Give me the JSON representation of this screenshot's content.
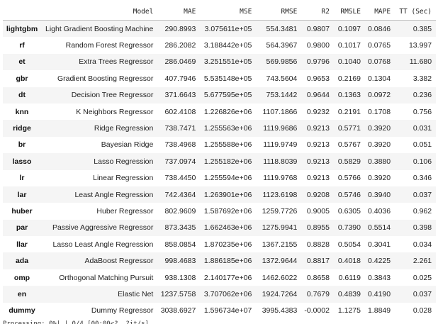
{
  "table": {
    "columns": [
      "",
      "Model",
      "MAE",
      "MSE",
      "RMSE",
      "R2",
      "RMSLE",
      "MAPE",
      "TT (Sec)"
    ],
    "rows": [
      [
        "lightgbm",
        "Light Gradient Boosting Machine",
        "290.8993",
        "3.075611e+05",
        "554.3481",
        "0.9807",
        "0.1097",
        "0.0846",
        "0.385"
      ],
      [
        "rf",
        "Random Forest Regressor",
        "286.2082",
        "3.188442e+05",
        "564.3967",
        "0.9800",
        "0.1017",
        "0.0765",
        "13.997"
      ],
      [
        "et",
        "Extra Trees Regressor",
        "286.0469",
        "3.251551e+05",
        "569.9856",
        "0.9796",
        "0.1040",
        "0.0768",
        "11.680"
      ],
      [
        "gbr",
        "Gradient Boosting Regressor",
        "407.7946",
        "5.535148e+05",
        "743.5604",
        "0.9653",
        "0.2169",
        "0.1304",
        "3.382"
      ],
      [
        "dt",
        "Decision Tree Regressor",
        "371.6643",
        "5.677595e+05",
        "753.1442",
        "0.9644",
        "0.1363",
        "0.0972",
        "0.236"
      ],
      [
        "knn",
        "K Neighbors Regressor",
        "602.4108",
        "1.226826e+06",
        "1107.1866",
        "0.9232",
        "0.2191",
        "0.1708",
        "0.756"
      ],
      [
        "ridge",
        "Ridge Regression",
        "738.7471",
        "1.255563e+06",
        "1119.9686",
        "0.9213",
        "0.5771",
        "0.3920",
        "0.031"
      ],
      [
        "br",
        "Bayesian Ridge",
        "738.4968",
        "1.255588e+06",
        "1119.9749",
        "0.9213",
        "0.5767",
        "0.3920",
        "0.051"
      ],
      [
        "lasso",
        "Lasso Regression",
        "737.0974",
        "1.255182e+06",
        "1118.8039",
        "0.9213",
        "0.5829",
        "0.3880",
        "0.106"
      ],
      [
        "lr",
        "Linear Regression",
        "738.4450",
        "1.255594e+06",
        "1119.9768",
        "0.9213",
        "0.5766",
        "0.3920",
        "0.346"
      ],
      [
        "lar",
        "Least Angle Regression",
        "742.4364",
        "1.263901e+06",
        "1123.6198",
        "0.9208",
        "0.5746",
        "0.3940",
        "0.037"
      ],
      [
        "huber",
        "Huber Regressor",
        "802.9609",
        "1.587692e+06",
        "1259.7726",
        "0.9005",
        "0.6305",
        "0.4036",
        "0.962"
      ],
      [
        "par",
        "Passive Aggressive Regressor",
        "873.3435",
        "1.662463e+06",
        "1275.9941",
        "0.8955",
        "0.7390",
        "0.5514",
        "0.398"
      ],
      [
        "llar",
        "Lasso Least Angle Regression",
        "858.0854",
        "1.870235e+06",
        "1367.2155",
        "0.8828",
        "0.5054",
        "0.3041",
        "0.034"
      ],
      [
        "ada",
        "AdaBoost Regressor",
        "998.4683",
        "1.886185e+06",
        "1372.9644",
        "0.8817",
        "0.4018",
        "0.4225",
        "2.261"
      ],
      [
        "omp",
        "Orthogonal Matching Pursuit",
        "938.1308",
        "2.140177e+06",
        "1462.6022",
        "0.8658",
        "0.6119",
        "0.3843",
        "0.025"
      ],
      [
        "en",
        "Elastic Net",
        "1237.5758",
        "3.707062e+06",
        "1924.7264",
        "0.7679",
        "0.4839",
        "0.4190",
        "0.037"
      ],
      [
        "dummy",
        "Dummy Regressor",
        "3038.6927",
        "1.596734e+07",
        "3995.4383",
        "-0.0002",
        "1.1275",
        "1.8849",
        "0.028"
      ]
    ]
  },
  "footer_cut_text": "Processing:   0%|          | 0/4 [00:00<?, ?it/s]"
}
